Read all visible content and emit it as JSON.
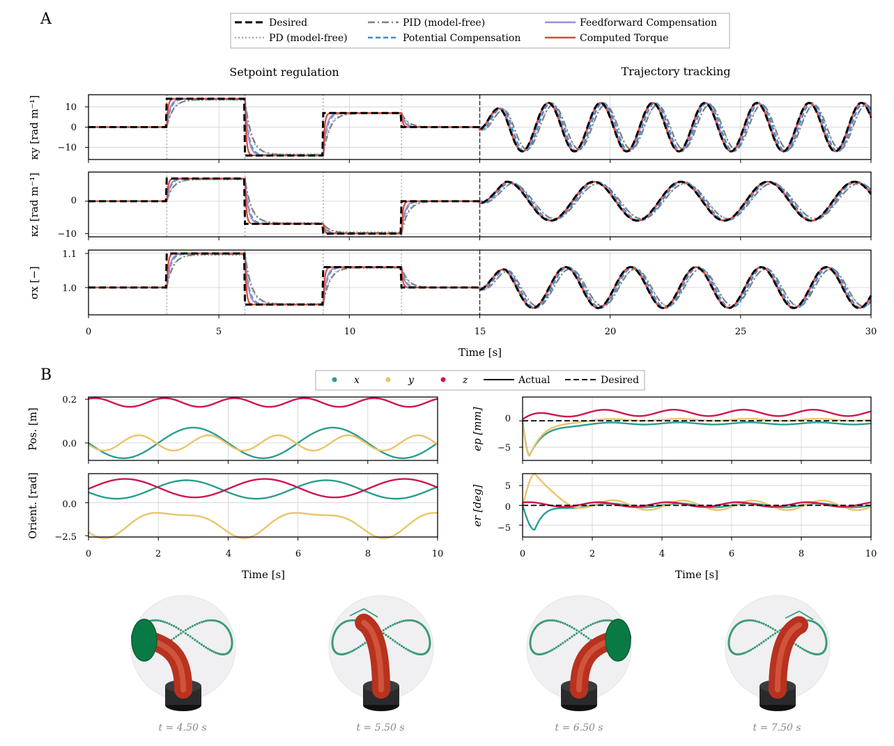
{
  "panel_a": {
    "label": "A",
    "title_left": "Setpoint regulation",
    "title_right": "Trajectory tracking",
    "legend": [
      {
        "name": "Desired",
        "color": "#000000",
        "style": "dashed-bold"
      },
      {
        "name": "PD (model-free)",
        "color": "#aaaaaa",
        "style": "dotted"
      },
      {
        "name": "PID (model-free)",
        "color": "#808080",
        "style": "dashdot"
      },
      {
        "name": "Potential Compensation",
        "color": "#3a8cc4",
        "style": "dashed"
      },
      {
        "name": "Feedforward Compensation",
        "color": "#9b8fd6",
        "style": "solid"
      },
      {
        "name": "Computed Torque",
        "color": "#e0472f",
        "style": "solid"
      }
    ],
    "xlabel": "Time [s]",
    "xticks": [
      "0",
      "5",
      "10",
      "15",
      "20",
      "25",
      "30"
    ],
    "row_labels": [
      "κy [rad m⁻¹]",
      "κz [rad m⁻¹]",
      "σx [−]"
    ],
    "row1_yticks": [
      "10",
      "0",
      "−10"
    ],
    "row2_yticks": [
      "0",
      "−10"
    ],
    "row3_yticks": [
      "1.1",
      "1.0"
    ]
  },
  "chart_data": [
    {
      "type": "line",
      "title": "Setpoint regulation / Trajectory tracking",
      "ylabel": "κy [rad m⁻¹]",
      "xlabel": "Time [s]",
      "xlim": [
        0,
        30
      ],
      "ylim": [
        -16,
        16
      ],
      "setpoints": [
        {
          "t": [
            0,
            3
          ],
          "v": 0
        },
        {
          "t": [
            3,
            6
          ],
          "v": 14
        },
        {
          "t": [
            6,
            9
          ],
          "v": -14
        },
        {
          "t": [
            9,
            12
          ],
          "v": 7
        },
        {
          "t": [
            12,
            15
          ],
          "v": 0
        }
      ],
      "tracking": {
        "t_start": 15,
        "amplitude": 12,
        "period": 2,
        "mean": 0
      },
      "series": [
        "Desired",
        "PD (model-free)",
        "PID (model-free)",
        "Potential Compensation",
        "Feedforward Compensation",
        "Computed Torque"
      ]
    },
    {
      "type": "line",
      "ylabel": "κz [rad m⁻¹]",
      "xlim": [
        0,
        30
      ],
      "ylim": [
        -11,
        9
      ],
      "setpoints": [
        {
          "t": [
            0,
            3
          ],
          "v": 0
        },
        {
          "t": [
            3,
            6
          ],
          "v": 7
        },
        {
          "t": [
            6,
            9
          ],
          "v": -7
        },
        {
          "t": [
            9,
            12
          ],
          "v": -10
        },
        {
          "t": [
            12,
            15
          ],
          "v": 0
        }
      ],
      "tracking": {
        "t_start": 15,
        "amplitude": 6,
        "period": 3.33,
        "mean": 0
      }
    },
    {
      "type": "line",
      "ylabel": "σx [−]",
      "xlim": [
        0,
        30
      ],
      "ylim": [
        0.92,
        1.11
      ],
      "setpoints": [
        {
          "t": [
            0,
            3
          ],
          "v": 1.0
        },
        {
          "t": [
            3,
            6
          ],
          "v": 1.1
        },
        {
          "t": [
            6,
            9
          ],
          "v": 0.95
        },
        {
          "t": [
            9,
            12
          ],
          "v": 1.06
        },
        {
          "t": [
            12,
            15
          ],
          "v": 1.0
        }
      ],
      "tracking": {
        "t_start": 15,
        "amplitude": 0.06,
        "period": 2.5,
        "mean": 1.0
      }
    },
    {
      "type": "line",
      "ylabel": "Pos. [m]",
      "xlabel": "Time [s]",
      "xlim": [
        0,
        10
      ],
      "ylim": [
        -0.08,
        0.21
      ],
      "series": [
        {
          "name": "x",
          "color": "#2a9d8f",
          "mean": 0.0,
          "amplitude": 0.07,
          "period": 4
        },
        {
          "name": "y",
          "color": "#e9c46a",
          "mean": 0.0,
          "amplitude": 0.035,
          "period": 2
        },
        {
          "name": "z",
          "color": "#d0154f",
          "mean": 0.185,
          "amplitude": 0.02,
          "period": 2
        }
      ]
    },
    {
      "type": "line",
      "ylabel": "Orient. [rad]",
      "xlabel": "Time [s]",
      "xlim": [
        0,
        10
      ],
      "ylim": [
        -2.6,
        2.2
      ],
      "series": [
        {
          "name": "x",
          "color": "#2a9d8f",
          "mean": 1.0,
          "amplitude": 0.7,
          "period": 4
        },
        {
          "name": "y",
          "color": "#e9c46a",
          "mean": -1.5,
          "amplitude": 1.0,
          "period": 4
        },
        {
          "name": "z",
          "color": "#d0154f",
          "mean": 1.1,
          "amplitude": 0.7,
          "period": 4
        }
      ]
    },
    {
      "type": "line",
      "ylabel": "ep [mm]",
      "xlabel": "Time [s]",
      "xlim": [
        0,
        10
      ],
      "ylim": [
        -7.5,
        4.5
      ],
      "series": [
        {
          "name": "x",
          "color": "#2a9d8f",
          "steady": -0.5,
          "transient_min": -6.5
        },
        {
          "name": "y",
          "color": "#e9c46a",
          "steady": 0.2,
          "transient_min": -6.8
        },
        {
          "name": "z",
          "color": "#d0154f",
          "steady": 1.5,
          "transient_max": 2.5
        }
      ]
    },
    {
      "type": "line",
      "ylabel": "er [deg]",
      "xlabel": "Time [s]",
      "xlim": [
        0,
        10
      ],
      "ylim": [
        -8,
        8
      ],
      "series": [
        {
          "name": "x",
          "color": "#2a9d8f",
          "steady": 0,
          "transient_min": -6.6
        },
        {
          "name": "y",
          "color": "#e9c46a",
          "steady": 0,
          "transient_max": 7.2
        },
        {
          "name": "z",
          "color": "#d0154f",
          "steady": 0.2
        }
      ]
    }
  ],
  "panel_b": {
    "label": "B",
    "legend": [
      {
        "name": "x",
        "color": "#2a9d8f",
        "kind": "marker"
      },
      {
        "name": "y",
        "color": "#e9c46a",
        "kind": "marker"
      },
      {
        "name": "z",
        "color": "#d0154f",
        "kind": "marker"
      },
      {
        "name": "Actual",
        "color": "#000000",
        "kind": "solid"
      },
      {
        "name": "Desired",
        "color": "#000000",
        "kind": "dashed"
      }
    ],
    "xlabel": "Time [s]",
    "xticks": [
      "0",
      "2",
      "4",
      "6",
      "8",
      "10"
    ],
    "pos_label": "Pos. [m]",
    "pos_yticks": [
      "0.2",
      "0.0"
    ],
    "orient_label": "Orient. [rad]",
    "orient_yticks": [
      "0.0",
      "−2.5"
    ],
    "ep_label": "ep [mm]",
    "ep_yticks": [
      "0",
      "−5"
    ],
    "er_label": "er [deg]",
    "er_yticks": [
      "5",
      "0",
      "−5"
    ],
    "snapshots": [
      "t = 4.50 s",
      "t = 5.50 s",
      "t = 6.50 s",
      "t = 7.50 s"
    ]
  }
}
